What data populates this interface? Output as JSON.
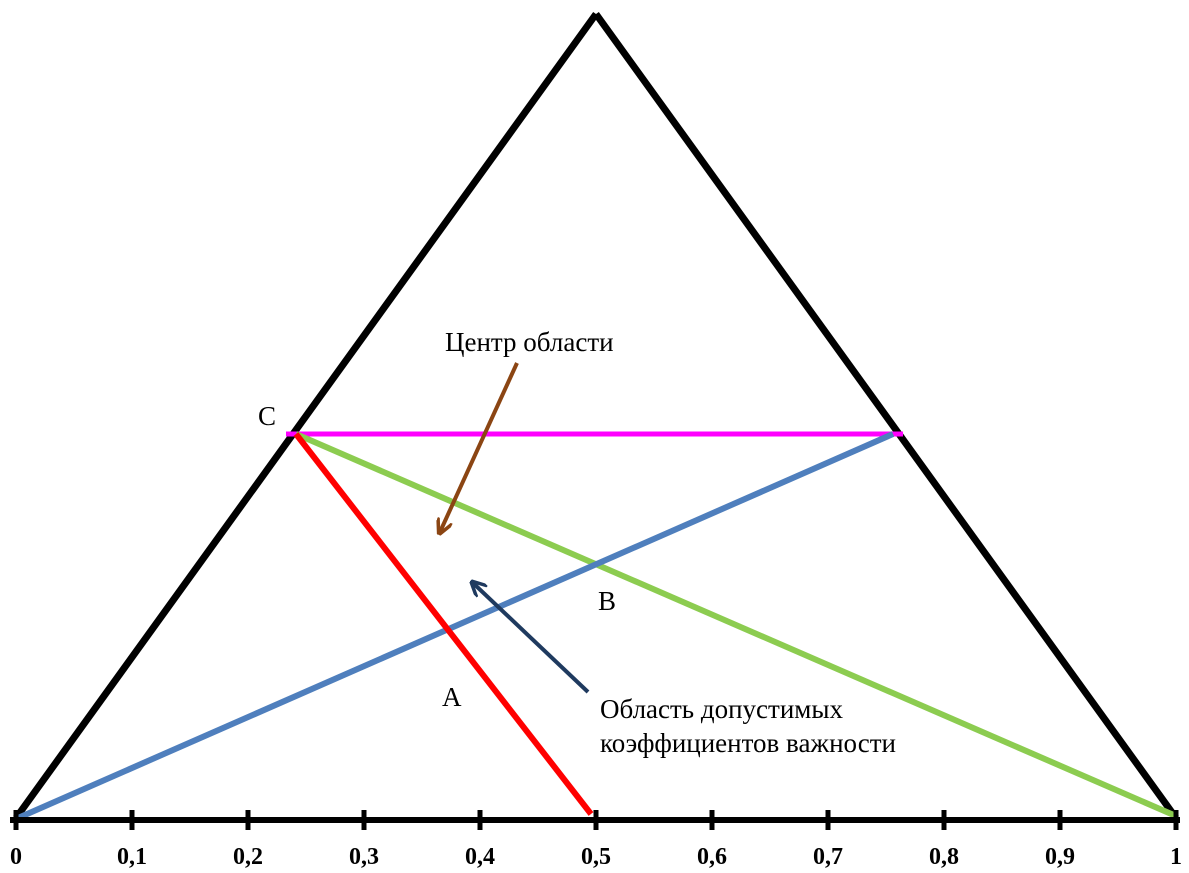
{
  "axis": {
    "ticks": [
      "0",
      "0,1",
      "0,2",
      "0,3",
      "0,4",
      "0,5",
      "0,6",
      "0,7",
      "0,8",
      "0,9",
      "1"
    ],
    "color": "#000000"
  },
  "points": {
    "a": "A",
    "b": "B",
    "c": "C"
  },
  "annotations": {
    "center": "Центр области",
    "region_line1": "Область допустимых",
    "region_line2": "коэффициентов важности"
  },
  "colors": {
    "triangle": "#000000",
    "line_a": "#ff0000",
    "line_b": "#8ccc50",
    "line_blue": "#4f7fbd",
    "line_c": "#ff00ff",
    "arrow_center": "#8b4513",
    "arrow_region": "#1f3a5f"
  }
}
